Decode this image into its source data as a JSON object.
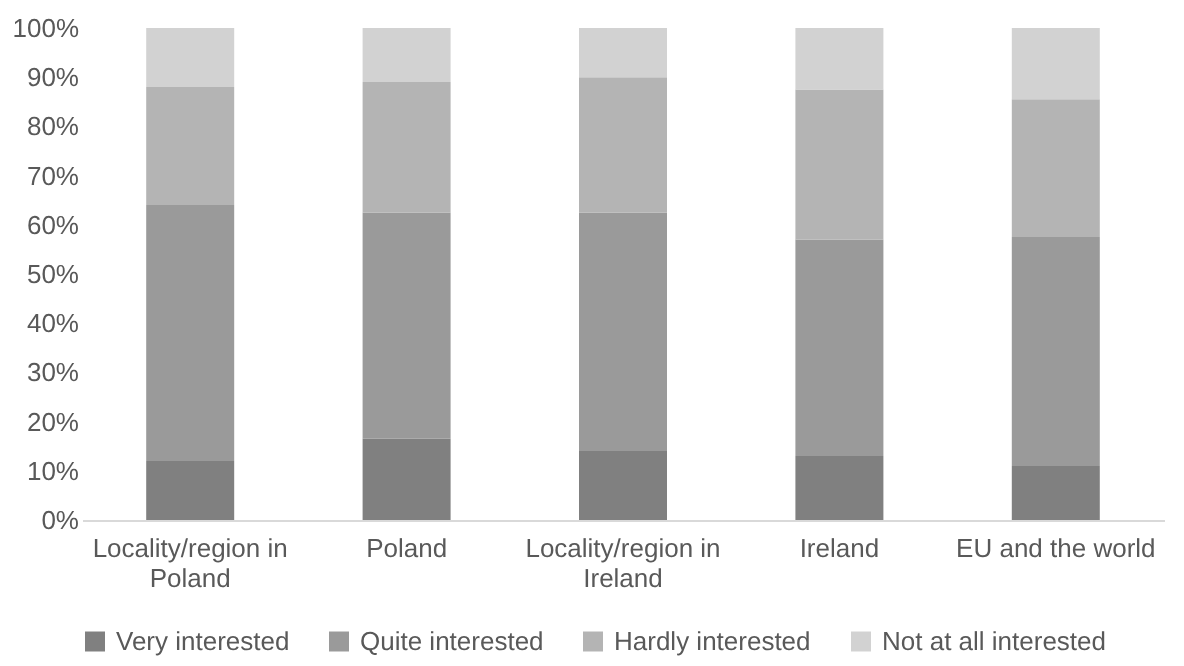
{
  "chart_data": {
    "type": "bar",
    "stacked": true,
    "categories": [
      "Locality/region in Poland",
      "Poland",
      "Locality/region in Ireland",
      "Ireland",
      "EU and the world"
    ],
    "series": [
      {
        "name": "Very interested",
        "color": "#808080",
        "values": [
          12,
          16.5,
          14,
          13,
          11
        ]
      },
      {
        "name": "Quite interested",
        "color": "#9a9a9a",
        "values": [
          52,
          46,
          48.5,
          44,
          46.5
        ]
      },
      {
        "name": "Hardly interested",
        "color": "#b4b4b4",
        "values": [
          24,
          26.5,
          27.5,
          30.5,
          28
        ]
      },
      {
        "name": "Not at all interested",
        "color": "#d2d2d2",
        "values": [
          12,
          11,
          10,
          12.5,
          14.5
        ]
      }
    ],
    "ylim": [
      0,
      100
    ],
    "yticks": [
      {
        "value": 0,
        "label": "0%"
      },
      {
        "value": 10,
        "label": "10%"
      },
      {
        "value": 20,
        "label": "20%"
      },
      {
        "value": 30,
        "label": "30%"
      },
      {
        "value": 40,
        "label": "40%"
      },
      {
        "value": 50,
        "label": "50%"
      },
      {
        "value": 60,
        "label": "60%"
      },
      {
        "value": 70,
        "label": "70%"
      },
      {
        "value": 80,
        "label": "80%"
      },
      {
        "value": 90,
        "label": "90%"
      },
      {
        "value": 100,
        "label": "100%"
      }
    ],
    "grid": false,
    "legend": "bottom"
  }
}
